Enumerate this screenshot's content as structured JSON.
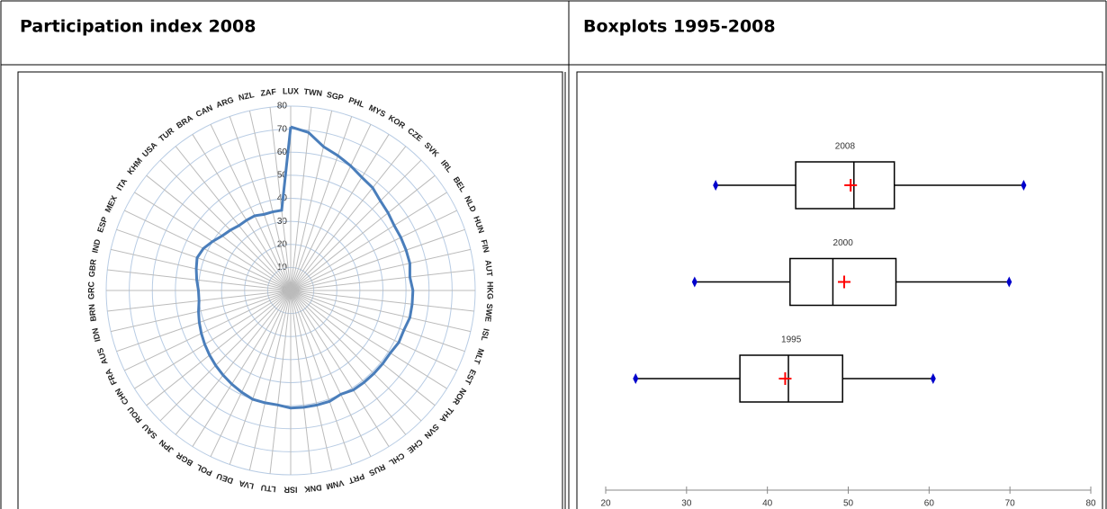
{
  "chart_data": [
    {
      "type": "radar",
      "title": "Participation index 2008",
      "categories": [
        "LUX",
        "TWN",
        "SGP",
        "PHL",
        "MYS",
        "KOR",
        "CZE",
        "SVK",
        "IRL",
        "BEL",
        "NLD",
        "HUN",
        "FIN",
        "AUT",
        "HKG",
        "SWE",
        "ISL",
        "MLT",
        "EST",
        "NOR",
        "THA",
        "SVN",
        "CHE",
        "CHL",
        "RUS",
        "PRT",
        "VNM",
        "DNK",
        "ISR",
        "LTU",
        "LVA",
        "DEU",
        "POL",
        "BGR",
        "JPN",
        "SAU",
        "ROU",
        "CHN",
        "FRA",
        "AUS",
        "IDN",
        "BRN",
        "GRC",
        "GBR",
        "IND",
        "ESP",
        "MEX",
        "ITA",
        "KHM",
        "USA",
        "TUR",
        "BRA",
        "CAN",
        "ARG",
        "NZL",
        "ZAF"
      ],
      "values": [
        71,
        69,
        64,
        62,
        60,
        58,
        57,
        55,
        54,
        53,
        53,
        53,
        53,
        52,
        53,
        53,
        53,
        52,
        52,
        51,
        51,
        51,
        51,
        51,
        50,
        51,
        51,
        51,
        51,
        50,
        50,
        50,
        49,
        48,
        47,
        46,
        45,
        44,
        43,
        42,
        41,
        40,
        40,
        41,
        42,
        43,
        42,
        40,
        38,
        37,
        36,
        36,
        36,
        35,
        35,
        35
      ],
      "color": "#4a7ebb",
      "ylim": [
        0,
        80
      ],
      "yticks": [
        0,
        10,
        20,
        30,
        40,
        50,
        60,
        70,
        80
      ],
      "grid": true
    },
    {
      "type": "box",
      "title": "Boxplots 1995-2008",
      "series": [
        {
          "name": "2008",
          "min": 33.6,
          "q1": 43.5,
          "median": 50.7,
          "q3": 55.7,
          "max": 71.7,
          "mean": 50.3
        },
        {
          "name": "2000",
          "min": 31.0,
          "q1": 42.8,
          "median": 48.1,
          "q3": 55.9,
          "max": 69.9,
          "mean": 49.5
        },
        {
          "name": "1995",
          "min": 23.7,
          "q1": 36.6,
          "median": 42.6,
          "q3": 49.3,
          "max": 60.5,
          "mean": 42.2
        }
      ],
      "color": "#000000",
      "mean_color": "#ff0000",
      "whisker_end_color": "#0000cc",
      "xlim": [
        20,
        80
      ],
      "xticks": [
        20,
        30,
        40,
        50,
        60,
        70,
        80
      ]
    }
  ]
}
